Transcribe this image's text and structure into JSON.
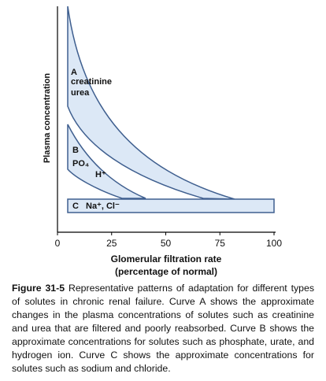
{
  "chart_data": {
    "type": "schematic",
    "y_axis_label": "Plasma concentration",
    "x_axis_label": "Glomerular filtration rate",
    "x_axis_sublabel": "(percentage of normal)",
    "xlim": [
      0,
      100
    ],
    "xticks": [
      0,
      25,
      50,
      75,
      100
    ],
    "curves": [
      {
        "letter": "A",
        "lines": [
          "creatinine",
          "urea"
        ]
      },
      {
        "letter": "B",
        "lines": [
          "PO₄",
          "H⁺"
        ]
      },
      {
        "letter": "C",
        "lines": [
          "Na⁺, Cl⁻"
        ]
      }
    ]
  },
  "caption": {
    "label": "Figure 31-5",
    "text": "Representative patterns of adaptation for different types of solutes in chronic renal failure. Curve A shows the approximate changes in the plasma concentrations of solutes such as creatinine and urea that are filtered and poorly reabsorbed. Curve B shows the approximate concentrations for solutes such as phosphate, urate, and hydrogen ion. Curve C shows the approximate concentrations for solutes such as sodium and chloride."
  }
}
